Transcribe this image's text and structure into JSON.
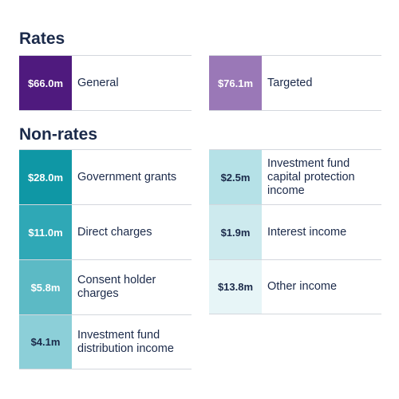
{
  "rates": {
    "title": "Rates",
    "left": [
      {
        "amount": "$66.0m",
        "label": "General",
        "color": "#4f1a7e"
      }
    ],
    "right": [
      {
        "amount": "$76.1m",
        "label": "Targeted",
        "color": "#9a78b7"
      }
    ]
  },
  "non_rates": {
    "title": "Non-rates",
    "left": [
      {
        "amount": "$28.0m",
        "label": "Government grants",
        "color": "#0f97a5"
      },
      {
        "amount": "$11.0m",
        "label": "Direct charges",
        "color": "#2fa8b6"
      },
      {
        "amount": "$5.8m",
        "label": "Consent holder charges",
        "color": "#5cbac5"
      },
      {
        "amount": "$4.1m",
        "label": "Investment fund distribution income",
        "color": "#8ccfd8"
      }
    ],
    "right": [
      {
        "amount": "$2.5m",
        "label": "Investment fund capital protection income",
        "color": "#b5e1e7"
      },
      {
        "amount": "$1.9m",
        "label": "Interest income",
        "color": "#cdeaee"
      },
      {
        "amount": "$13.8m",
        "label": "Other income",
        "color": "#e7f5f7"
      }
    ]
  }
}
